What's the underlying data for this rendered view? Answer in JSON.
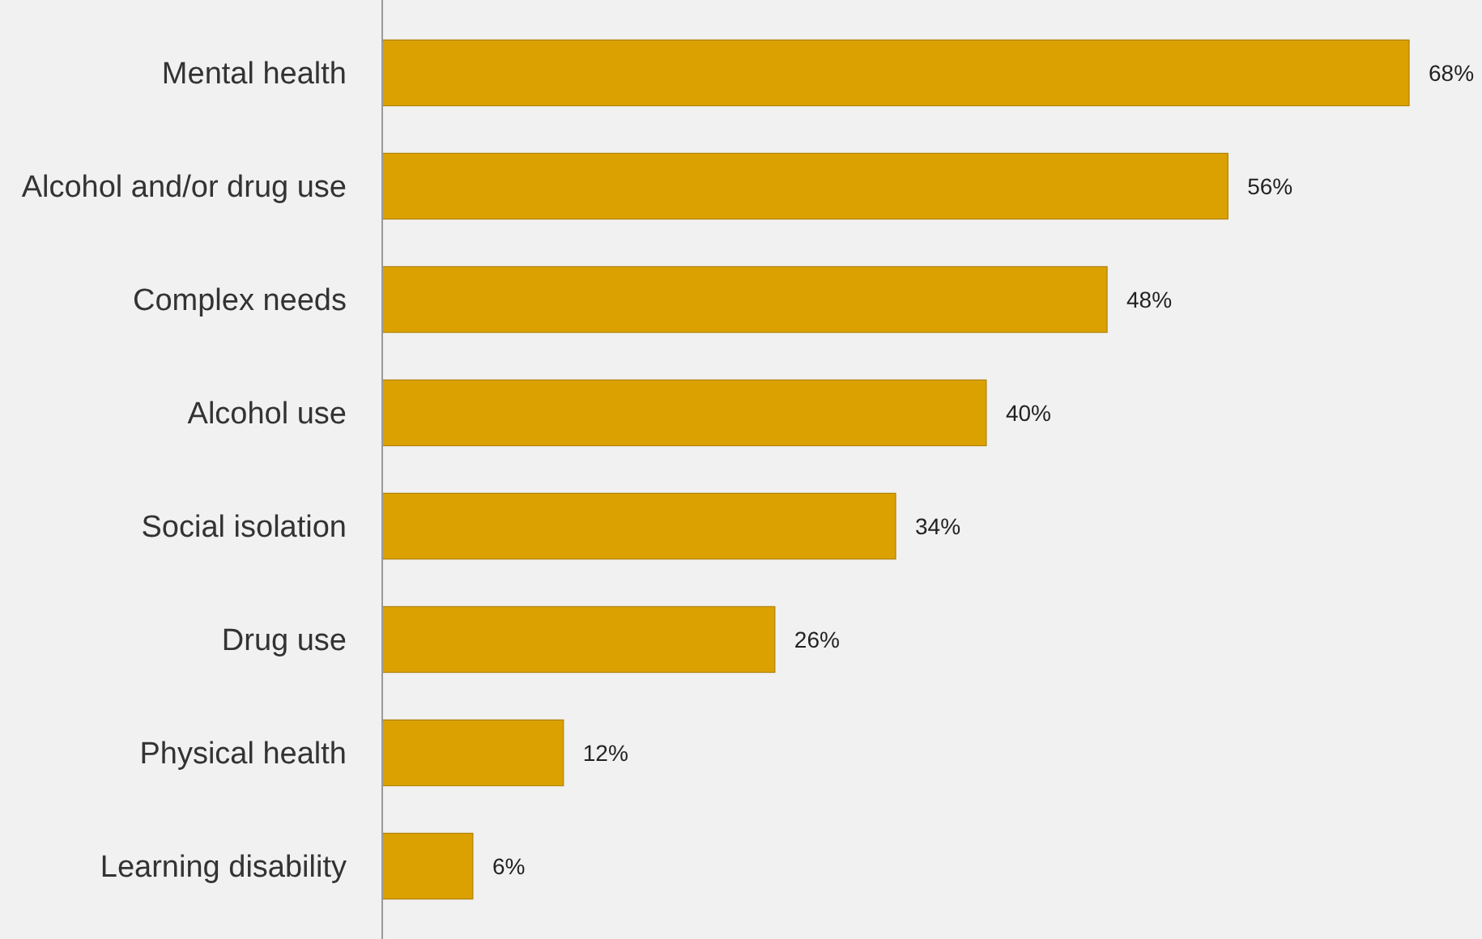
{
  "chart_data": {
    "type": "bar",
    "orientation": "horizontal",
    "categories": [
      "Mental health",
      "Alcohol and/or drug use",
      "Complex needs",
      "Alcohol use",
      "Social isolation",
      "Drug use",
      "Physical health",
      "Learning disability"
    ],
    "values": [
      68,
      56,
      48,
      40,
      34,
      26,
      12,
      6
    ],
    "value_labels": [
      "68%",
      "56%",
      "48%",
      "40%",
      "34%",
      "26%",
      "12%",
      "6%"
    ],
    "color": "#dba100",
    "xlim": [
      0,
      68
    ],
    "tick_labels": "y"
  }
}
